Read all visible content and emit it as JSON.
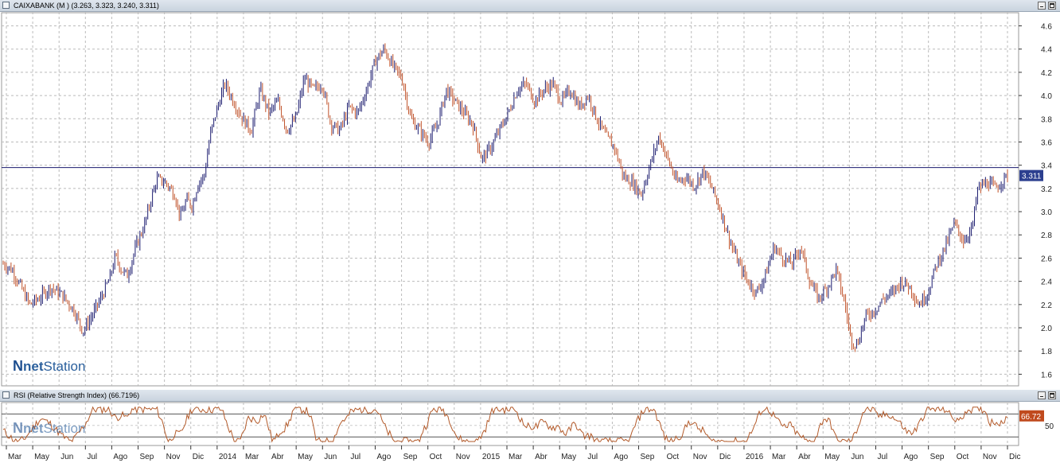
{
  "main_panel": {
    "title": "CAIXABANK (M ) (3.263, 3.323, 3.240, 3.311)",
    "last_price_label": "3.311"
  },
  "rsi_panel": {
    "title": "RSI (Relative Strength Index) (66.7196)",
    "last_value_label": "66.72",
    "level_label": "50"
  },
  "logo": {
    "mark": "N",
    "brand_bold": "net",
    "brand_rest": "Station"
  },
  "colors": {
    "up_bar": "#1a1a6e",
    "down_bar": "#c0522a",
    "rsi_line": "#b35a2a",
    "price_line": "#1a1a6e",
    "accent": "#2c3f8f"
  },
  "chart_data": [
    {
      "type": "ohlc",
      "series": [
        {
          "name": "CAIXABANK (M )",
          "last": {
            "open": 3.263,
            "high": 3.323,
            "low": 3.24,
            "close": 3.311
          }
        }
      ],
      "x_labels": [
        "Mar",
        "May",
        "Jun",
        "Jul",
        "Ago",
        "Sep",
        "Nov",
        "Dic",
        "2014",
        "Mar",
        "Abr",
        "May",
        "Jun",
        "Jul",
        "Ago",
        "Sep",
        "Oct",
        "Nov",
        "2015",
        "Mar",
        "Abr",
        "May",
        "Jul",
        "Ago",
        "Sep",
        "Oct",
        "Nov",
        "Dic",
        "2016",
        "Mar",
        "Abr",
        "May",
        "Jun",
        "Jul",
        "Ago",
        "Sep",
        "Oct",
        "Nov",
        "Dic"
      ],
      "y_ticks": [
        "1.6",
        "1.8",
        "2.0",
        "2.2",
        "2.4",
        "2.6",
        "2.8",
        "3.0",
        "3.2",
        "3.4",
        "3.6",
        "3.8",
        "4.0",
        "4.2",
        "4.4",
        "4.6"
      ],
      "ylim": [
        1.5,
        4.72
      ],
      "grid": true,
      "horizontal_line": 3.38,
      "price_path": [
        [
          0,
          2.55
        ],
        [
          3,
          2.5
        ],
        [
          6,
          2.35
        ],
        [
          9,
          2.2
        ],
        [
          12,
          2.25
        ],
        [
          16,
          2.35
        ],
        [
          20,
          2.28
        ],
        [
          24,
          2.15
        ],
        [
          27,
          1.97
        ],
        [
          30,
          2.1
        ],
        [
          33,
          2.25
        ],
        [
          36,
          2.42
        ],
        [
          38,
          2.62
        ],
        [
          40,
          2.5
        ],
        [
          42,
          2.45
        ],
        [
          45,
          2.7
        ],
        [
          48,
          2.9
        ],
        [
          50,
          3.1
        ],
        [
          52,
          3.28
        ],
        [
          55,
          3.25
        ],
        [
          58,
          3.15
        ],
        [
          60,
          2.95
        ],
        [
          62,
          3.1
        ],
        [
          64,
          3.05
        ],
        [
          66,
          3.25
        ],
        [
          68,
          3.3
        ],
        [
          70,
          3.65
        ],
        [
          72,
          3.85
        ],
        [
          75,
          4.1
        ],
        [
          78,
          3.95
        ],
        [
          81,
          3.8
        ],
        [
          84,
          3.7
        ],
        [
          87,
          4.05
        ],
        [
          90,
          3.85
        ],
        [
          93,
          3.95
        ],
        [
          96,
          3.7
        ],
        [
          99,
          3.8
        ],
        [
          102,
          4.15
        ],
        [
          105,
          4.05
        ],
        [
          108,
          4.1
        ],
        [
          111,
          3.75
        ],
        [
          114,
          3.7
        ],
        [
          117,
          3.9
        ],
        [
          120,
          3.85
        ],
        [
          123,
          4.05
        ],
        [
          126,
          4.3
        ],
        [
          129,
          4.4
        ],
        [
          132,
          4.25
        ],
        [
          135,
          4.15
        ],
        [
          138,
          3.8
        ],
        [
          141,
          3.7
        ],
        [
          144,
          3.6
        ],
        [
          147,
          3.75
        ],
        [
          150,
          4.05
        ],
        [
          153,
          3.95
        ],
        [
          156,
          3.85
        ],
        [
          159,
          3.75
        ],
        [
          162,
          3.45
        ],
        [
          165,
          3.55
        ],
        [
          168,
          3.7
        ],
        [
          171,
          3.85
        ],
        [
          174,
          4.05
        ],
        [
          177,
          4.1
        ],
        [
          180,
          3.95
        ],
        [
          183,
          4.05
        ],
        [
          186,
          4.1
        ],
        [
          189,
          3.95
        ],
        [
          192,
          4.05
        ],
        [
          195,
          3.9
        ],
        [
          198,
          4.0
        ],
        [
          201,
          3.8
        ],
        [
          204,
          3.65
        ],
        [
          207,
          3.55
        ],
        [
          210,
          3.3
        ],
        [
          213,
          3.25
        ],
        [
          216,
          3.15
        ],
        [
          219,
          3.4
        ],
        [
          222,
          3.65
        ],
        [
          225,
          3.45
        ],
        [
          228,
          3.25
        ],
        [
          231,
          3.3
        ],
        [
          234,
          3.22
        ],
        [
          237,
          3.35
        ],
        [
          240,
          3.2
        ],
        [
          243,
          3.0
        ],
        [
          246,
          2.75
        ],
        [
          249,
          2.55
        ],
        [
          252,
          2.4
        ],
        [
          255,
          2.3
        ],
        [
          258,
          2.45
        ],
        [
          261,
          2.7
        ],
        [
          264,
          2.6
        ],
        [
          267,
          2.55
        ],
        [
          270,
          2.7
        ],
        [
          273,
          2.4
        ],
        [
          276,
          2.25
        ],
        [
          279,
          2.35
        ],
        [
          282,
          2.5
        ],
        [
          285,
          2.2
        ],
        [
          287,
          1.9
        ],
        [
          289,
          1.85
        ],
        [
          292,
          2.1
        ],
        [
          295,
          2.15
        ],
        [
          298,
          2.25
        ],
        [
          301,
          2.3
        ],
        [
          304,
          2.4
        ],
        [
          307,
          2.35
        ],
        [
          310,
          2.2
        ],
        [
          313,
          2.3
        ],
        [
          316,
          2.55
        ],
        [
          319,
          2.7
        ],
        [
          322,
          2.9
        ],
        [
          325,
          2.75
        ],
        [
          328,
          2.85
        ],
        [
          330,
          3.2
        ],
        [
          333,
          3.25
        ],
        [
          336,
          3.2
        ],
        [
          338,
          3.26
        ],
        [
          340,
          3.31
        ]
      ]
    },
    {
      "type": "line",
      "series": [
        {
          "name": "RSI (Relative Strength Index)",
          "last": 66.7196
        }
      ],
      "ylim": [
        15,
        90
      ],
      "y_ticks": [
        "50"
      ],
      "overbought": 70,
      "oversold": 30,
      "grid": true
    }
  ]
}
